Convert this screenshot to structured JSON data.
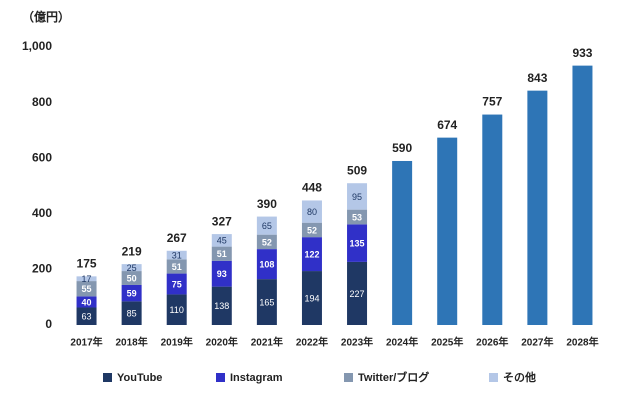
{
  "chart_data": {
    "type": "stacked_bar",
    "y_label": "（億円）",
    "categories": [
      "2017年",
      "2018年",
      "2019年",
      "2020年",
      "2021年",
      "2022年",
      "2023年",
      "2024年",
      "2025年",
      "2026年",
      "2027年",
      "2028年"
    ],
    "series": [
      {
        "name": "YouTube",
        "color": "#1f3864",
        "values": [
          63,
          85,
          110,
          138,
          165,
          194,
          227,
          null,
          null,
          null,
          null,
          null
        ]
      },
      {
        "name": "Instagram",
        "color": "#3030c8",
        "values": [
          40,
          59,
          75,
          93,
          108,
          122,
          135,
          null,
          null,
          null,
          null,
          null
        ]
      },
      {
        "name": "Twitter/ブログ",
        "color": "#8497b0",
        "values": [
          55,
          50,
          51,
          51,
          52,
          52,
          53,
          null,
          null,
          null,
          null,
          null
        ]
      },
      {
        "name": "その他",
        "color": "#b4c7e7",
        "values": [
          17,
          25,
          31,
          45,
          65,
          80,
          95,
          null,
          null,
          null,
          null,
          null
        ]
      }
    ],
    "totals": [
      175,
      219,
      267,
      327,
      390,
      448,
      509,
      null,
      null,
      null,
      null,
      null
    ],
    "forecast": {
      "color": "#2e75b6",
      "values": [
        null,
        null,
        null,
        null,
        null,
        null,
        null,
        590,
        674,
        757,
        843,
        933
      ]
    },
    "ylim": [
      0,
      1000
    ],
    "yticks": [
      0,
      200,
      400,
      600,
      800,
      {
        "value": 1000,
        "label": "1,000"
      }
    ],
    "grid": false
  }
}
